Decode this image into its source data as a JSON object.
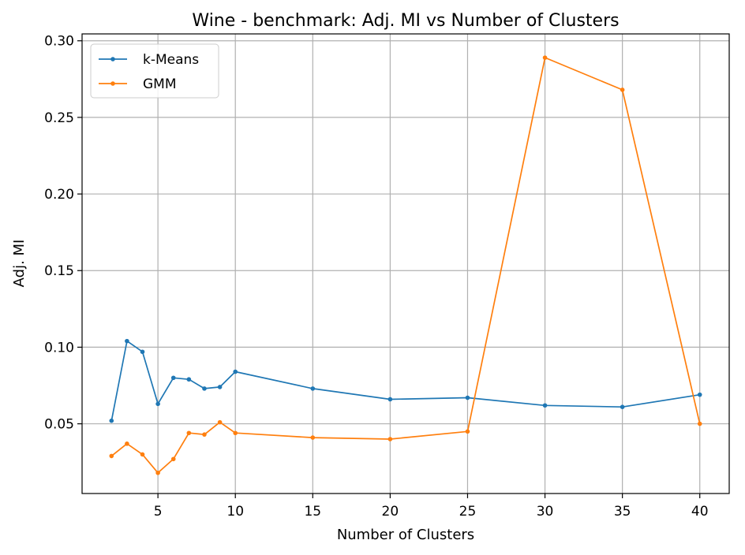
{
  "chart_data": {
    "type": "line",
    "title": "Wine - benchmark: Adj. MI vs Number of Clusters",
    "xlabel": "Number of Clusters",
    "ylabel": "Adj. MI",
    "xlim": [
      0.1,
      41.9
    ],
    "ylim": [
      0.0045,
      0.3045
    ],
    "xticks": [
      5,
      10,
      15,
      20,
      25,
      30,
      35,
      40
    ],
    "xtick_labels": [
      "5",
      "10",
      "15",
      "20",
      "25",
      "30",
      "35",
      "40"
    ],
    "yticks": [
      0.05,
      0.1,
      0.15,
      0.2,
      0.25,
      0.3
    ],
    "ytick_labels": [
      "0.05",
      "0.10",
      "0.15",
      "0.20",
      "0.25",
      "0.30"
    ],
    "grid": true,
    "legend_position": "top-left",
    "x": [
      2,
      3,
      4,
      5,
      6,
      7,
      8,
      9,
      10,
      15,
      20,
      25,
      30,
      35,
      40
    ],
    "series": [
      {
        "name": "k-Means",
        "color": "#1f77b4",
        "values": [
          0.052,
          0.104,
          0.097,
          0.063,
          0.08,
          0.079,
          0.073,
          0.074,
          0.084,
          0.073,
          0.066,
          0.067,
          0.062,
          0.061,
          0.069
        ]
      },
      {
        "name": "GMM",
        "color": "#ff7f0e",
        "values": [
          0.029,
          0.037,
          0.03,
          0.018,
          0.027,
          0.044,
          0.043,
          0.051,
          0.044,
          0.041,
          0.04,
          0.045,
          0.289,
          0.268,
          0.05
        ]
      }
    ]
  }
}
